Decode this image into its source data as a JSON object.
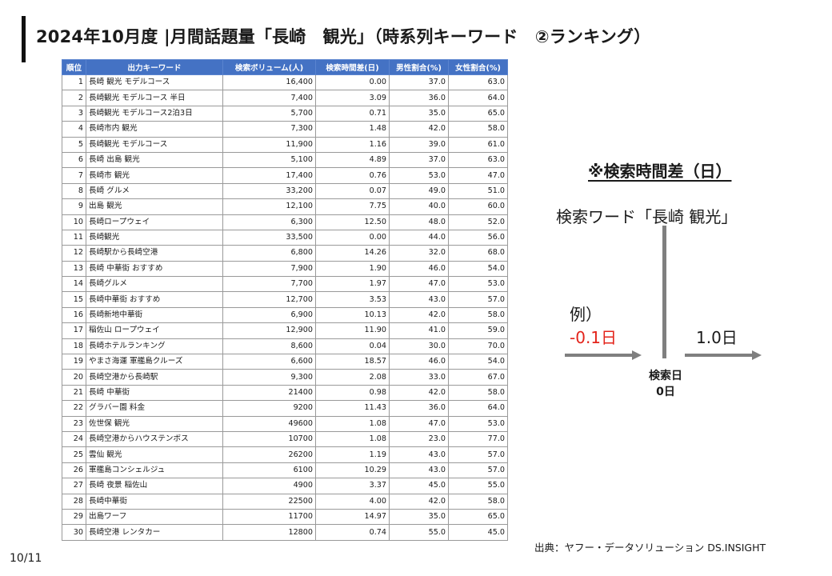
{
  "title": "2024年10月度 |月間話題量「長崎　観光」（時系列キーワード　②ランキング）",
  "table": {
    "headers": [
      "順位",
      "出力キーワード",
      "検索ボリューム(人)",
      "検索時間差(日)",
      "男性割合(%)",
      "女性割合(%)"
    ],
    "rows": [
      [
        "1",
        "長崎 観光 モデルコース",
        "16,400",
        "0.00",
        "37.0",
        "63.0"
      ],
      [
        "2",
        "長崎観光 モデルコース 半日",
        "7,400",
        "3.09",
        "36.0",
        "64.0"
      ],
      [
        "3",
        "長崎観光 モデルコース2泊3日",
        "5,700",
        "0.71",
        "35.0",
        "65.0"
      ],
      [
        "4",
        "長崎市内 観光",
        "7,300",
        "1.48",
        "42.0",
        "58.0"
      ],
      [
        "5",
        "長崎観光 モデルコース",
        "11,900",
        "1.16",
        "39.0",
        "61.0"
      ],
      [
        "6",
        "長崎 出島 観光",
        "5,100",
        "4.89",
        "37.0",
        "63.0"
      ],
      [
        "7",
        "長崎市 観光",
        "17,400",
        "0.76",
        "53.0",
        "47.0"
      ],
      [
        "8",
        "長崎 グルメ",
        "33,200",
        "0.07",
        "49.0",
        "51.0"
      ],
      [
        "9",
        "出島 観光",
        "12,100",
        "7.75",
        "40.0",
        "60.0"
      ],
      [
        "10",
        "長崎ロープウェイ",
        "6,300",
        "12.50",
        "48.0",
        "52.0"
      ],
      [
        "11",
        "長崎観光",
        "33,500",
        "0.00",
        "44.0",
        "56.0"
      ],
      [
        "12",
        "長崎駅から長崎空港",
        "6,800",
        "14.26",
        "32.0",
        "68.0"
      ],
      [
        "13",
        "長崎 中華街 おすすめ",
        "7,900",
        "1.90",
        "46.0",
        "54.0"
      ],
      [
        "14",
        "長崎グルメ",
        "7,700",
        "1.97",
        "47.0",
        "53.0"
      ],
      [
        "15",
        "長崎中華街 おすすめ",
        "12,700",
        "3.53",
        "43.0",
        "57.0"
      ],
      [
        "16",
        "長崎新地中華街",
        "6,900",
        "10.13",
        "42.0",
        "58.0"
      ],
      [
        "17",
        "稲佐山 ロープウェイ",
        "12,900",
        "11.90",
        "41.0",
        "59.0"
      ],
      [
        "18",
        "長崎ホテルランキング",
        "8,600",
        "0.04",
        "30.0",
        "70.0"
      ],
      [
        "19",
        "やまさ海運 軍艦島クルーズ",
        "6,600",
        "18.57",
        "46.0",
        "54.0"
      ],
      [
        "20",
        "長崎空港から長崎駅",
        "9,300",
        "2.08",
        "33.0",
        "67.0"
      ],
      [
        "21",
        "長崎 中華街",
        "21400",
        "0.98",
        "42.0",
        "58.0"
      ],
      [
        "22",
        "グラバー園 料金",
        "9200",
        "11.43",
        "36.0",
        "64.0"
      ],
      [
        "23",
        "佐世保 観光",
        "49600",
        "1.08",
        "47.0",
        "53.0"
      ],
      [
        "24",
        "長崎空港からハウステンボス",
        "10700",
        "1.08",
        "23.0",
        "77.0"
      ],
      [
        "25",
        "雲仙 観光",
        "26200",
        "1.19",
        "43.0",
        "57.0"
      ],
      [
        "26",
        "軍艦島コンシェルジュ",
        "6100",
        "10.29",
        "43.0",
        "57.0"
      ],
      [
        "27",
        "長崎 夜景 稲佐山",
        "4900",
        "3.37",
        "45.0",
        "55.0"
      ],
      [
        "28",
        "長崎中華街",
        "22500",
        "4.00",
        "42.0",
        "58.0"
      ],
      [
        "29",
        "出島ワーフ",
        "11700",
        "14.97",
        "35.0",
        "65.0"
      ],
      [
        "30",
        "長崎空港 レンタカー",
        "12800",
        "0.74",
        "55.0",
        "45.0"
      ]
    ]
  },
  "legend": {
    "title": "※検索時間差（日）",
    "keyword": "検索ワード「長崎 観光」",
    "example_label": "例）",
    "negative_value": "-0.1日",
    "positive_value": "1.0日",
    "day_zero_label": "検索日",
    "day_zero_value": "0日"
  },
  "source": "出典：ヤフー・データソリューション DS.INSIGHT",
  "page_number": "10/11",
  "colors": {
    "header_bg": "#4472c4",
    "negative_text": "#e3241b",
    "axis_line": "#7f7f7f"
  }
}
